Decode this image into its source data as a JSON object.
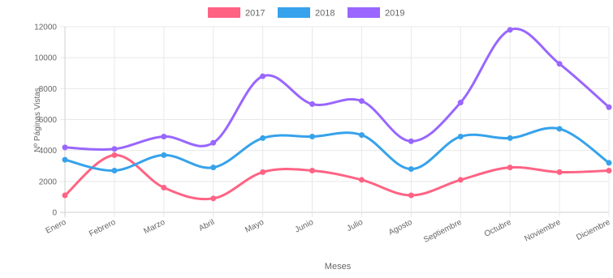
{
  "chart_data": {
    "type": "line",
    "title": "",
    "xlabel": "Meses",
    "ylabel": "Nº Páginas Vistas",
    "categories": [
      "Enero",
      "Febrero",
      "Marzo",
      "Abril",
      "Mayo",
      "Junio",
      "Julio",
      "Agosto",
      "Septiembre",
      "Octubre",
      "Noviembre",
      "Diciembre"
    ],
    "ylim": [
      0,
      12000
    ],
    "yticks": [
      0,
      2000,
      4000,
      6000,
      8000,
      10000,
      12000
    ],
    "grid": true,
    "legend_position": "top",
    "series": [
      {
        "name": "2017",
        "color": "#ff6384",
        "values": [
          1100,
          3700,
          1600,
          900,
          2600,
          2700,
          2100,
          1100,
          2100,
          2900,
          2600,
          2700
        ]
      },
      {
        "name": "2018",
        "color": "#36a2eb",
        "values": [
          3400,
          2700,
          3700,
          2900,
          4800,
          4900,
          5000,
          2800,
          4900,
          4800,
          5400,
          3200
        ]
      },
      {
        "name": "2019",
        "color": "#9966ff",
        "values": [
          4200,
          4100,
          4900,
          4500,
          8800,
          7000,
          7200,
          4600,
          7100,
          11800,
          9600,
          6800
        ]
      }
    ]
  }
}
